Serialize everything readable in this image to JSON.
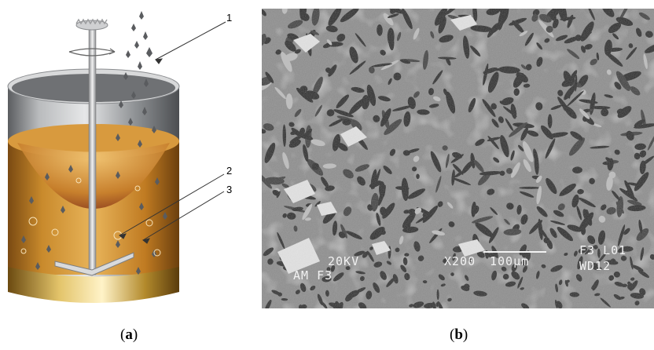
{
  "figure": {
    "panel_a": {
      "caption_open": "(",
      "caption_letter": "a",
      "caption_close": ")",
      "callouts": [
        "1",
        "2",
        "3"
      ]
    },
    "panel_b": {
      "caption_open": "(",
      "caption_letter": "b",
      "caption_close": ")",
      "sem_info": {
        "voltage": "20KV",
        "magnification": "X200",
        "scale": "100µm",
        "id": "F3 L01",
        "wd": "WD12",
        "sample": "AM F3"
      }
    }
  },
  "colors": {
    "liquid": "#c8892c",
    "steel": "#9a9c9e",
    "sem_matrix": "#8e8e8e"
  }
}
